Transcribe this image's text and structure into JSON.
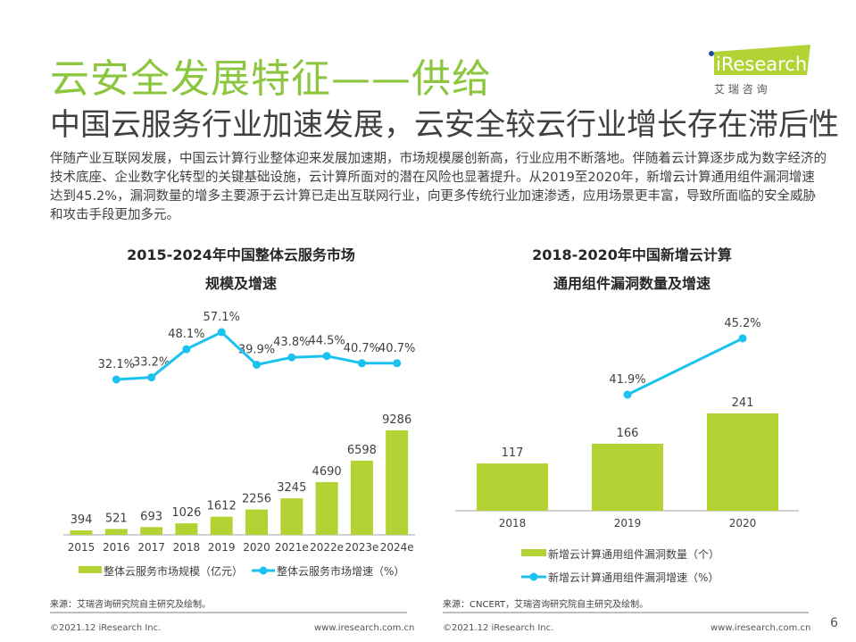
{
  "header": {
    "title": "云安全发展特征——供给",
    "subtitle": "中国云服务行业加速发展，云安全较云行业增长存在滞后性",
    "logo": {
      "brand": "iResearch",
      "cn": "艾 瑞 咨 询",
      "color": "#b0cf34"
    }
  },
  "body_text": "伴随产业互联网发展，中国云计算行业整体迎来发展加速期，市场规模屡创新高，行业应用不断落地。伴随着云计算逐步成为数字经济的技术底座、企业数字化转型的关键基础设施，云计算所面对的潜在风险也显著提升。从2019至2020年，新增云计算通用组件漏洞增速达到45.2%，漏洞数量的增多主要源于云计算已走出互联网行业，向更多传统行业加速渗透，应用场景更丰富，导致所面临的安全威胁和攻击手段更加多元。",
  "colors": {
    "bar": "#b3d234",
    "line": "#1cc2ef",
    "title": "#8cc63f"
  },
  "chart_data": [
    {
      "type": "bar+line",
      "title_line1": "2015-2024年中国整体云服务市场",
      "title_line2": "规模及增速",
      "categories": [
        "2015",
        "2016",
        "2017",
        "2018",
        "2019",
        "2020",
        "2021e",
        "2022e",
        "2023e",
        "2024e"
      ],
      "series": [
        {
          "name": "整体云服务市场规模（亿元）",
          "type": "bar",
          "values": [
            394,
            521,
            693,
            1026,
            1612,
            2256,
            3245,
            4690,
            6598,
            9286
          ]
        },
        {
          "name": "整体云服务市场增速（%）",
          "type": "line",
          "values": [
            null,
            32.1,
            33.2,
            48.1,
            57.1,
            39.9,
            43.8,
            44.5,
            40.7,
            40.7
          ],
          "labels": [
            "",
            "32.1%",
            "33.2%",
            "48.1%",
            "57.1%",
            "39.9%",
            "43.8%",
            "44.5%",
            "40.7%",
            "40.7%"
          ]
        }
      ],
      "legend": "bottom",
      "source": "来源：艾瑞咨询研究院自主研究及绘制。"
    },
    {
      "type": "bar+line",
      "title_line1": "2018-2020年中国新增云计算",
      "title_line2": "通用组件漏洞数量及增速",
      "categories": [
        "2018",
        "2019",
        "2020"
      ],
      "series": [
        {
          "name": "新增云计算通用组件漏洞数量（个）",
          "type": "bar",
          "values": [
            117,
            166,
            241
          ]
        },
        {
          "name": "新增云计算通用组件漏洞增速（%）",
          "type": "line",
          "values": [
            null,
            41.9,
            45.2
          ],
          "labels": [
            "",
            "41.9%",
            "45.2%"
          ]
        }
      ],
      "legend": "bottom",
      "source": "来源：CNCERT，艾瑞咨询研究院自主研究及绘制。"
    }
  ],
  "footer": {
    "copyright": "©2021.12 iResearch Inc.",
    "url": "www.iresearch.com.cn",
    "page": "6"
  }
}
